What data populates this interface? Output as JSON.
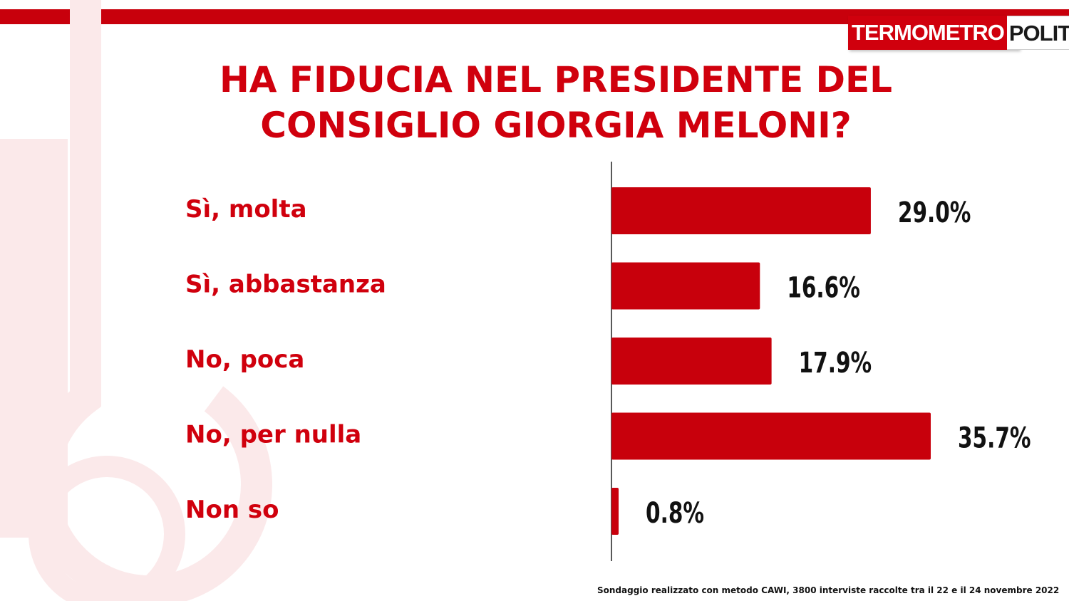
{
  "logo": {
    "part1": "TERMOMETRO",
    "part2": "POLITICO"
  },
  "title_lines": [
    "HA FIDUCIA NEL PRESIDENTE DEL",
    "CONSIGLIO GIORGIA MELONI?"
  ],
  "colors": {
    "brand_red": "#d0000d",
    "bar_red": "#c8000c",
    "label_dark": "#111111"
  },
  "chart_data": {
    "type": "bar",
    "orientation": "horizontal",
    "categories": [
      "Sì, molta",
      "Sì, abbastanza",
      "No, poca",
      "No, per nulla",
      "Non so"
    ],
    "values": [
      29.0,
      16.6,
      17.9,
      35.7,
      0.8
    ],
    "value_labels": [
      "29.0%",
      "16.6%",
      "17.9%",
      "35.7%",
      "0.8%"
    ],
    "unit": "%",
    "grid": false,
    "legend": "none"
  },
  "footnote": "Sondaggio realizzato con metodo CAWI, 3800 interviste raccolte tra il 22 e il 24 novembre 2022"
}
